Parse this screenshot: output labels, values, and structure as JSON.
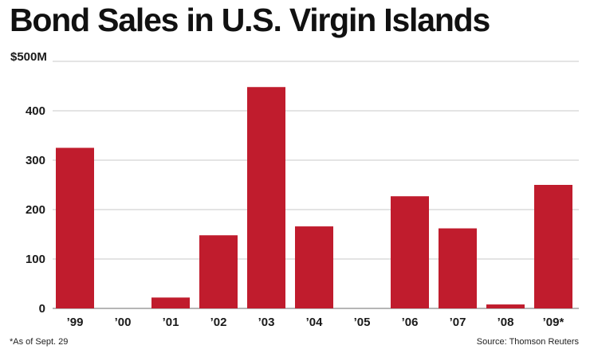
{
  "chart_data": {
    "type": "bar",
    "title": "Bond Sales in U.S. Virgin Islands",
    "xlabel": "",
    "ylabel": "",
    "categories": [
      "’99",
      "’00",
      "’01",
      "’02",
      "’03",
      "’04",
      "’05",
      "’06",
      "’07",
      "’08",
      "’09*"
    ],
    "values": [
      325,
      0,
      22,
      148,
      448,
      166,
      0,
      227,
      162,
      8,
      250
    ],
    "ylim": [
      0,
      500
    ],
    "yticks": [
      0,
      100,
      200,
      300,
      400,
      500
    ],
    "ytick_labels": [
      "0",
      "100",
      "200",
      "300",
      "400",
      "$500M"
    ],
    "grid": true,
    "bar_color": "#c01c2d",
    "footnote": "*As of Sept. 29",
    "source": "Source: Thomson Reuters"
  }
}
